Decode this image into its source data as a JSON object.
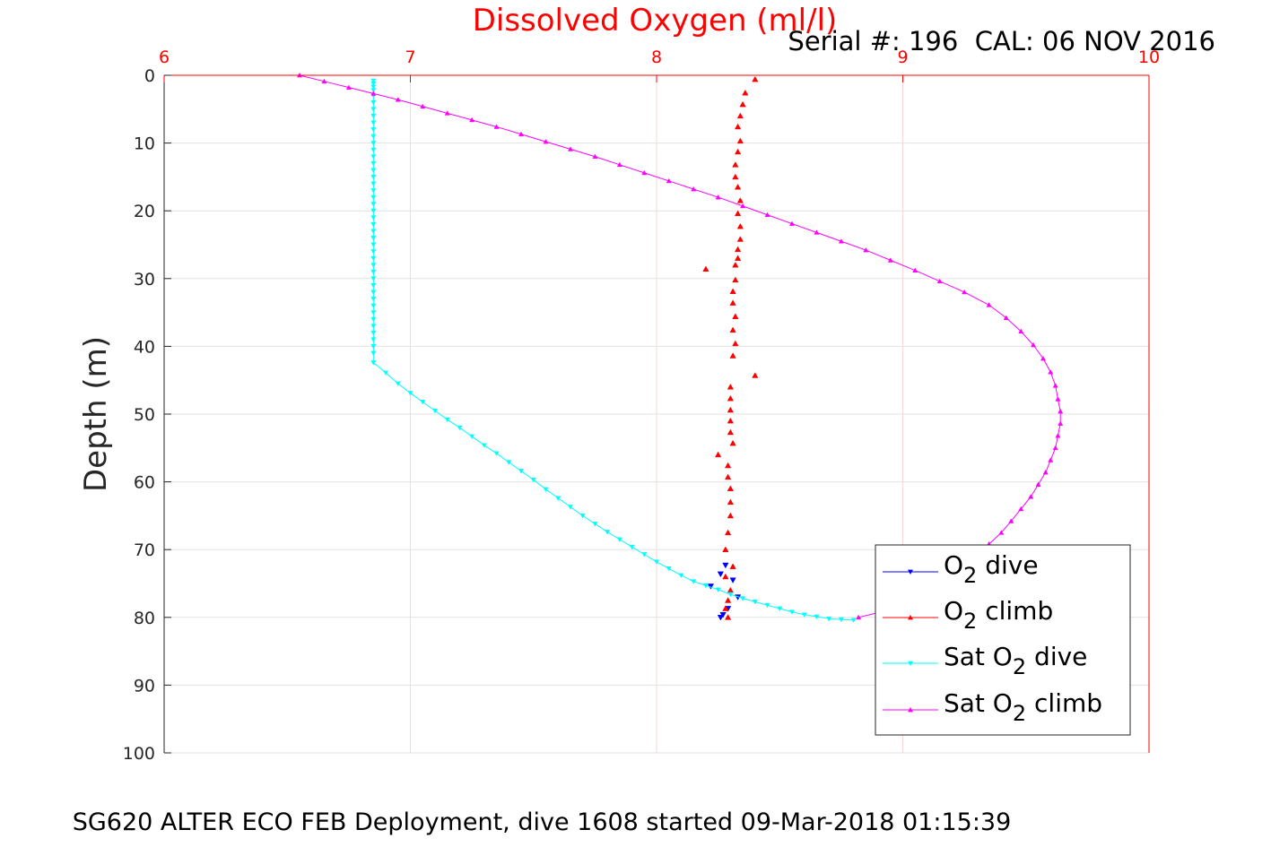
{
  "chart_data": {
    "type": "scatter",
    "title": "Dissolved Oxygen (ml/l)",
    "subtitle": "Serial #: 196  CAL: 06 NOV 2016",
    "footer": "SG620 ALTER ECO FEB Deployment, dive 1608 started 09-Mar-2018 01:15:39",
    "xlabel": "",
    "ylabel": "Depth (m)",
    "xlim": [
      6,
      10
    ],
    "ylim": [
      0,
      100
    ],
    "y_reversed": true,
    "x_axis_position": "top",
    "x_ticks": [
      "6",
      "7",
      "8",
      "9",
      "10"
    ],
    "y_ticks": [
      "0",
      "10",
      "20",
      "30",
      "40",
      "50",
      "60",
      "70",
      "80",
      "90",
      "100"
    ],
    "grid": true,
    "legend_position": "bottom-right",
    "colors": {
      "title": "#ff0000",
      "x_axis": "#ff0000",
      "grid_x": "#ffd6d6",
      "grid_y": "#e2e2e2",
      "axis": "#262626"
    },
    "series": [
      {
        "name": "O2 dive",
        "legend_main": "O",
        "legend_sub": "2",
        "legend_tail": " dive",
        "color": "#0000ff",
        "marker": "triangle-down",
        "line": false,
        "x": [
          8.28,
          8.26,
          8.31,
          8.22,
          8.33,
          8.29,
          8.27,
          8.26
        ],
        "y": [
          72.3,
          73.6,
          74.5,
          75.4,
          77.0,
          78.7,
          79.6,
          80.0
        ]
      },
      {
        "name": "O2 climb",
        "legend_main": "O",
        "legend_sub": "2",
        "legend_tail": " climb",
        "color": "#ff0000",
        "marker": "triangle-up",
        "line": false,
        "x": [
          8.4,
          8.36,
          8.35,
          8.34,
          8.33,
          8.34,
          8.33,
          8.32,
          8.32,
          8.33,
          8.34,
          8.33,
          8.34,
          8.34,
          8.33,
          8.33,
          8.32,
          8.2,
          8.32,
          8.31,
          8.31,
          8.32,
          8.31,
          8.32,
          8.31,
          8.4,
          8.3,
          8.3,
          8.3,
          8.3,
          8.3,
          8.31,
          8.25,
          8.29,
          8.29,
          8.3,
          8.3,
          8.3,
          8.29,
          8.28,
          8.31,
          8.28,
          8.3,
          8.29,
          8.28,
          8.29
        ],
        "y": [
          0.6,
          2.6,
          4.3,
          6.0,
          7.6,
          9.7,
          11.3,
          13.2,
          15.0,
          16.5,
          18.5,
          20.4,
          22.3,
          24.2,
          25.7,
          27.0,
          28.0,
          28.6,
          30.2,
          31.9,
          33.6,
          35.6,
          37.6,
          39.6,
          41.4,
          44.3,
          46.0,
          47.7,
          49.4,
          51.0,
          52.7,
          54.3,
          56.0,
          57.6,
          59.3,
          61.0,
          63.0,
          65.0,
          67.5,
          70.0,
          72.5,
          74.0,
          76.0,
          77.5,
          78.7,
          80.0
        ]
      },
      {
        "name": "Sat O2 dive",
        "legend_main": "Sat O",
        "legend_sub": "2",
        "legend_tail": " dive",
        "color": "#00ffff",
        "marker": "triangle-down",
        "line": true,
        "x": [
          6.85,
          6.85,
          6.85,
          6.85,
          6.85,
          6.85,
          6.85,
          6.85,
          6.85,
          6.85,
          6.85,
          6.85,
          6.85,
          6.85,
          6.85,
          6.85,
          6.85,
          6.85,
          6.85,
          6.85,
          6.85,
          6.85,
          6.85,
          6.85,
          6.85,
          6.85,
          6.85,
          6.85,
          6.85,
          6.85,
          6.85,
          6.85,
          6.85,
          6.85,
          6.85,
          6.85,
          6.85,
          6.85,
          6.85,
          6.85,
          6.85,
          6.85,
          6.85,
          6.85,
          6.9,
          6.95,
          7.0,
          7.05,
          7.1,
          7.15,
          7.2,
          7.25,
          7.3,
          7.35,
          7.4,
          7.45,
          7.5,
          7.55,
          7.6,
          7.65,
          7.7,
          7.75,
          7.8,
          7.85,
          7.9,
          7.95,
          8.0,
          8.05,
          8.1,
          8.15,
          8.2,
          8.25,
          8.3,
          8.35,
          8.4,
          8.45,
          8.5,
          8.55,
          8.6,
          8.65,
          8.7,
          8.75,
          8.8
        ],
        "y": [
          0.8,
          1.2,
          1.7,
          2.2,
          3.0,
          4.0,
          5.0,
          6.0,
          7.0,
          8.0,
          9.0,
          10.0,
          11.0,
          12.0,
          13.0,
          14.0,
          15.0,
          16.0,
          17.0,
          18.0,
          19.0,
          20.0,
          21.0,
          22.0,
          23.0,
          24.0,
          25.0,
          26.0,
          27.0,
          28.0,
          29.0,
          30.0,
          31.0,
          32.0,
          33.0,
          34.0,
          35.0,
          36.0,
          37.0,
          38.0,
          39.0,
          40.0,
          41.0,
          42.4,
          43.9,
          45.5,
          46.9,
          48.2,
          49.5,
          50.8,
          52.0,
          53.3,
          54.6,
          55.8,
          57.1,
          58.4,
          59.7,
          61.1,
          62.4,
          63.7,
          65.0,
          66.2,
          67.4,
          68.5,
          69.6,
          70.7,
          71.8,
          72.8,
          73.8,
          74.7,
          75.3,
          75.9,
          76.6,
          77.2,
          77.7,
          78.2,
          78.7,
          79.2,
          79.6,
          79.9,
          80.2,
          80.3,
          80.4
        ]
      },
      {
        "name": "Sat O2 climb",
        "legend_main": "Sat O",
        "legend_sub": "2",
        "legend_tail": " climb",
        "color": "#ff00ff",
        "marker": "triangle-up",
        "line": true,
        "x": [
          6.55,
          6.65,
          6.75,
          6.85,
          6.95,
          7.05,
          7.15,
          7.25,
          7.35,
          7.45,
          7.55,
          7.65,
          7.75,
          7.85,
          7.95,
          8.05,
          8.15,
          8.25,
          8.35,
          8.45,
          8.55,
          8.65,
          8.75,
          8.85,
          8.95,
          9.05,
          9.15,
          9.25,
          9.35,
          9.42,
          9.48,
          9.53,
          9.57,
          9.6,
          9.62,
          9.63,
          9.64,
          9.64,
          9.63,
          9.62,
          9.6,
          9.58,
          9.55,
          9.52,
          9.48,
          9.44,
          9.4,
          9.35,
          9.28,
          9.2,
          9.12,
          9.05,
          8.98,
          8.9,
          8.82
        ],
        "y": [
          0.0,
          0.9,
          1.8,
          2.7,
          3.6,
          4.6,
          5.6,
          6.6,
          7.6,
          8.7,
          9.8,
          10.9,
          12.0,
          13.2,
          14.4,
          15.6,
          16.8,
          18.0,
          19.3,
          20.6,
          21.9,
          23.2,
          24.5,
          25.8,
          27.3,
          28.8,
          30.4,
          32.0,
          33.9,
          35.8,
          37.8,
          39.8,
          41.8,
          43.8,
          45.8,
          47.8,
          49.6,
          51.4,
          53.2,
          55.0,
          56.8,
          58.6,
          60.4,
          62.2,
          64.0,
          65.8,
          67.5,
          69.2,
          71.0,
          73.2,
          75.3,
          77.0,
          78.3,
          79.3,
          80.0
        ]
      }
    ]
  }
}
